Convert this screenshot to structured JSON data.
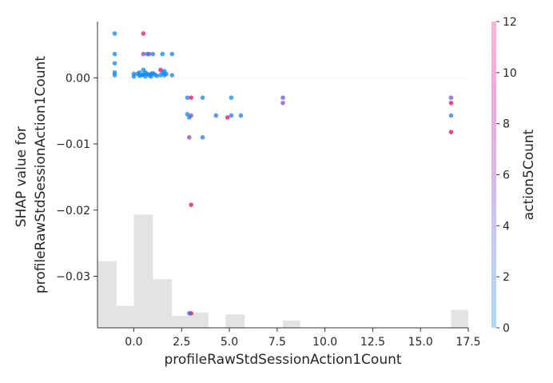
{
  "chart_data": {
    "type": "scatter",
    "subtype": "shap_dependence_plot",
    "xlabel": "profileRawStdSessionAction1Count",
    "ylabel_lines": [
      "SHAP value for",
      "profileRawStdSessionAction1Count"
    ],
    "xlim": [
      -1.9,
      17.5
    ],
    "ylim": [
      -0.0378,
      0.0085
    ],
    "x_ticks": [
      0.0,
      2.5,
      5.0,
      7.5,
      10.0,
      12.5,
      15.0,
      17.5
    ],
    "x_tick_labels": [
      "0.0",
      "2.5",
      "5.0",
      "7.5",
      "10.0",
      "12.5",
      "15.0",
      "17.5"
    ],
    "y_ticks": [
      0.0,
      -0.01,
      -0.02,
      -0.03
    ],
    "y_tick_labels": [
      "0.00",
      "−0.01",
      "−0.02",
      "−0.03"
    ],
    "zero_line": true,
    "grid": false,
    "colorbar": {
      "label": "action5Count",
      "min": 0,
      "max": 12,
      "ticks": [
        0,
        2,
        4,
        6,
        8,
        10,
        12
      ],
      "tick_labels": [
        "0",
        "2",
        "4",
        "6",
        "8",
        "10",
        "12"
      ],
      "colors": [
        "#aed8f5",
        "#c3cdf0",
        "#d8b8e8",
        "#f0a9dc",
        "#ffb3d6"
      ]
    },
    "histogram": {
      "description": "background distribution of feature values",
      "bins": [
        {
          "x0": -1.9,
          "x1": -0.9,
          "count": 10
        },
        {
          "x0": -0.9,
          "x1": 0.0,
          "count": 3.3
        },
        {
          "x0": 0.0,
          "x1": 1.0,
          "count": 17
        },
        {
          "x0": 1.0,
          "x1": 2.0,
          "count": 7.3
        },
        {
          "x0": 2.0,
          "x1": 2.9,
          "count": 1.8
        },
        {
          "x0": 2.9,
          "x1": 3.9,
          "count": 2.3
        },
        {
          "x0": 4.8,
          "x1": 5.8,
          "count": 2.0
        },
        {
          "x0": 7.8,
          "x1": 8.7,
          "count": 1.1
        },
        {
          "x0": 16.6,
          "x1": 17.5,
          "count": 2.7
        }
      ],
      "color": "#e3e3e3"
    },
    "series": [
      {
        "points": [
          {
            "x": -1.0,
            "y": 0.0067,
            "c": 0.3
          },
          {
            "x": -1.0,
            "y": 0.0036,
            "c": 0.3
          },
          {
            "x": -1.0,
            "y": 0.0022,
            "c": 0.3
          },
          {
            "x": -1.0,
            "y": 0.0008,
            "c": 0.3
          },
          {
            "x": -1.0,
            "y": 0.0004,
            "c": 0.3
          },
          {
            "x": 0.0,
            "y": 0.0006,
            "c": 0.3
          },
          {
            "x": 0.0,
            "y": 0.0002,
            "c": 1.0
          },
          {
            "x": 0.2,
            "y": 0.0006,
            "c": 0.3
          },
          {
            "x": 0.3,
            "y": 0.0008,
            "c": 0.3
          },
          {
            "x": 0.3,
            "y": 0.0003,
            "c": 0.6
          },
          {
            "x": 0.4,
            "y": 0.0004,
            "c": 0.3
          },
          {
            "x": 0.5,
            "y": 0.0067,
            "c": 10.5
          },
          {
            "x": 0.5,
            "y": 0.0036,
            "c": 7.0
          },
          {
            "x": 0.5,
            "y": 0.0012,
            "c": 0.3
          },
          {
            "x": 0.5,
            "y": 0.0005,
            "c": 0.3
          },
          {
            "x": 0.6,
            "y": 0.0008,
            "c": 0.3
          },
          {
            "x": 0.6,
            "y": 0.0002,
            "c": 0.3
          },
          {
            "x": 0.7,
            "y": 0.0006,
            "c": 0.3
          },
          {
            "x": 0.7,
            "y": 0.0036,
            "c": 0.8
          },
          {
            "x": 0.8,
            "y": 0.0036,
            "c": 5.2
          },
          {
            "x": 0.8,
            "y": 0.0004,
            "c": 0.3
          },
          {
            "x": 0.9,
            "y": 0.0006,
            "c": 0.3
          },
          {
            "x": 0.9,
            "y": 0.0002,
            "c": 0.3
          },
          {
            "x": 1.0,
            "y": 0.0036,
            "c": 2.0
          },
          {
            "x": 1.0,
            "y": 0.0007,
            "c": 0.6
          },
          {
            "x": 1.1,
            "y": 0.0005,
            "c": 1.2
          },
          {
            "x": 1.2,
            "y": 0.0003,
            "c": 0.6
          },
          {
            "x": 1.4,
            "y": 0.0012,
            "c": 11.5
          },
          {
            "x": 1.4,
            "y": 0.0004,
            "c": 0.3
          },
          {
            "x": 1.5,
            "y": 0.0036,
            "c": 0.3
          },
          {
            "x": 1.5,
            "y": 0.0008,
            "c": 0.3
          },
          {
            "x": 1.6,
            "y": 0.0004,
            "c": 0.3
          },
          {
            "x": 1.6,
            "y": 0.001,
            "c": 0.3
          },
          {
            "x": 1.7,
            "y": 0.0006,
            "c": 0.3
          },
          {
            "x": 2.0,
            "y": 0.0036,
            "c": 1.5
          },
          {
            "x": 2.0,
            "y": 0.0004,
            "c": 1.5
          },
          {
            "x": 2.8,
            "y": -0.003,
            "c": 1.5
          },
          {
            "x": 2.8,
            "y": -0.0055,
            "c": 1.5
          },
          {
            "x": 2.9,
            "y": -0.006,
            "c": 1.5
          },
          {
            "x": 2.9,
            "y": -0.009,
            "c": 7.0
          },
          {
            "x": 2.9,
            "y": -0.0356,
            "c": 1.5
          },
          {
            "x": 3.0,
            "y": -0.003,
            "c": 11.0
          },
          {
            "x": 3.0,
            "y": -0.0057,
            "c": 5.5
          },
          {
            "x": 3.0,
            "y": -0.0192,
            "c": 11.0
          },
          {
            "x": 3.0,
            "y": -0.0356,
            "c": 10.0
          },
          {
            "x": 3.6,
            "y": -0.003,
            "c": 1.5
          },
          {
            "x": 3.6,
            "y": -0.009,
            "c": 1.5
          },
          {
            "x": 4.3,
            "y": -0.0057,
            "c": 1.5
          },
          {
            "x": 4.9,
            "y": -0.006,
            "c": 11.0
          },
          {
            "x": 5.1,
            "y": -0.003,
            "c": 0.3
          },
          {
            "x": 5.1,
            "y": -0.0057,
            "c": 1.5
          },
          {
            "x": 5.6,
            "y": -0.0057,
            "c": 1.5
          },
          {
            "x": 7.8,
            "y": -0.003,
            "c": 5.0
          },
          {
            "x": 7.8,
            "y": -0.0038,
            "c": 6.0
          },
          {
            "x": 16.6,
            "y": -0.003,
            "c": 5.5
          },
          {
            "x": 16.6,
            "y": -0.0038,
            "c": 11.5
          },
          {
            "x": 16.6,
            "y": -0.0057,
            "c": 1.5
          },
          {
            "x": 16.6,
            "y": -0.0082,
            "c": 11.5
          }
        ]
      }
    ]
  }
}
